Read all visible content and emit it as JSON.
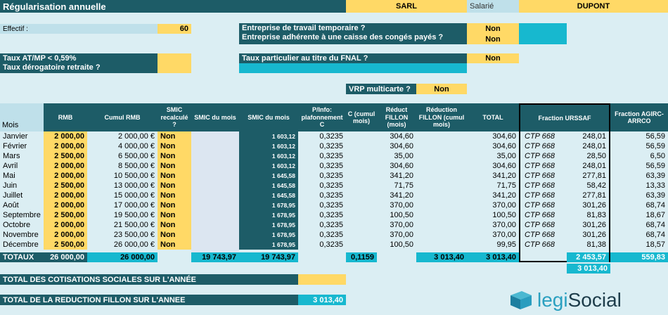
{
  "header": {
    "title": "Régularisation annuelle",
    "company": "SARL",
    "salarie_label": "Salarié",
    "employee": "DUPONT"
  },
  "effectif": {
    "label": "Effectif :",
    "value": "60"
  },
  "questions": {
    "travail_temporaire": "Entreprise de travail temporaire ?",
    "travail_temporaire_value": "Non",
    "caisse_conges": "Entreprise adhérente à une caisse des congés payés ?",
    "caisse_conges_value": "Non",
    "taux_atmp": "Taux AT/MP < 0,59%",
    "taux_derogatoire": "Taux dérogatoire retraite ?",
    "taux_fnal": "Taux particulier au titre du FNAL ?",
    "taux_fnal_value": "Non",
    "vrp": "VRP multicarte ?",
    "vrp_value": "Non"
  },
  "table": {
    "mois_label": "Mois",
    "headers": {
      "rmb": "RMB",
      "cumul_rmb": "Cumul RMB",
      "smic_recalcule": "SMIC recalculé ?",
      "smic_mois": "SMIC du mois",
      "smic_mois2": "SMIC du mois",
      "plafonnement": "P/Info: plafonnement C",
      "c_cumul": "C (cumul mois)",
      "reduct_fillon": "Réduct FILLON (mois)",
      "reduction_fillon_cumul": "Réduction FILLON (cumul mois)",
      "total": "TOTAL",
      "fraction_urssaf": "Fraction URSSAF",
      "fraction_agirc": "Fraction AGIRC-ARRCO"
    },
    "months": [
      "Janvier",
      "Février",
      "Mars",
      "Avril",
      "Mai",
      "Juin",
      "Juillet",
      "Août",
      "Septembre",
      "Octobre",
      "Novembre",
      "Décembre"
    ],
    "rmb": [
      "2 000,00",
      "2 000,00",
      "2 500,00",
      "2 000,00",
      "2 000,00",
      "2 500,00",
      "2 000,00",
      "2 000,00",
      "2 500,00",
      "2 000,00",
      "2 000,00",
      "2 500,00"
    ],
    "cumul_rmb": [
      "2 000,00 €",
      "4 000,00 €",
      "6 500,00 €",
      "8 500,00 €",
      "10 500,00 €",
      "13 000,00 €",
      "15 000,00 €",
      "17 000,00 €",
      "19 500,00 €",
      "21 500,00 €",
      "23 500,00 €",
      "26 000,00 €"
    ],
    "smic_recalcule": [
      "Non",
      "Non",
      "Non",
      "Non",
      "Non",
      "Non",
      "Non",
      "Non",
      "Non",
      "Non",
      "Non",
      "Non"
    ],
    "smic_mois2": [
      "1 603,12",
      "1 603,12",
      "1 603,12",
      "1 603,12",
      "1 645,58",
      "1 645,58",
      "1 645,58",
      "1 678,95",
      "1 678,95",
      "1 678,95",
      "1 678,95",
      "1 678,95"
    ],
    "plafonnement": [
      "0,3235",
      "0,3235",
      "0,3235",
      "0,3235",
      "0,3235",
      "0,3235",
      "0,3235",
      "0,3235",
      "0,3235",
      "0,3235",
      "0,3235",
      "0,3235"
    ],
    "reduct_fillon": [
      "304,60",
      "304,60",
      "35,00",
      "304,60",
      "341,20",
      "71,75",
      "341,20",
      "370,00",
      "100,50",
      "370,00",
      "370,00",
      "100,50"
    ],
    "total": [
      "304,60",
      "304,60",
      "35,00",
      "304,60",
      "341,20",
      "71,75",
      "341,20",
      "370,00",
      "100,50",
      "370,00",
      "370,00",
      "99,95"
    ],
    "ctp": [
      "CTP 668",
      "CTP 668",
      "CTP 668",
      "CTP 668",
      "CTP 668",
      "CTP 668",
      "CTP 668",
      "CTP 668",
      "CTP 668",
      "CTP 668",
      "CTP 668",
      "CTP 668"
    ],
    "urssaf": [
      "248,01",
      "248,01",
      "28,50",
      "248,01",
      "277,81",
      "58,42",
      "277,81",
      "301,26",
      "81,83",
      "301,26",
      "301,26",
      "81,38"
    ],
    "agirc": [
      "56,59",
      "56,59",
      "6,50",
      "56,59",
      "63,39",
      "13,33",
      "63,39",
      "68,74",
      "18,67",
      "68,74",
      "68,74",
      "18,57"
    ],
    "totaux": {
      "label": "TOTAUX",
      "rmb": "26 000,00",
      "cumul_rmb": "26 000,00",
      "smic_mois": "19 743,97",
      "smic_mois2": "19 743,97",
      "c_cumul": "0,1159",
      "reduction_fillon_cumul": "3 013,40",
      "total": "3 013,40",
      "urssaf": "2 453,57",
      "agirc": "559,83",
      "urssaf_agirc_sum": "3 013,40"
    }
  },
  "footer": {
    "total_cotisations": "TOTAL DES COTISATIONS SOCIALES SUR L'ANNÉE",
    "total_reduction": "TOTAL DE LA REDUCTION FILLON SUR L'ANNEE",
    "total_reduction_value": "3 013,40"
  },
  "logo": {
    "text_legi": "legi",
    "text_social": "Social"
  }
}
